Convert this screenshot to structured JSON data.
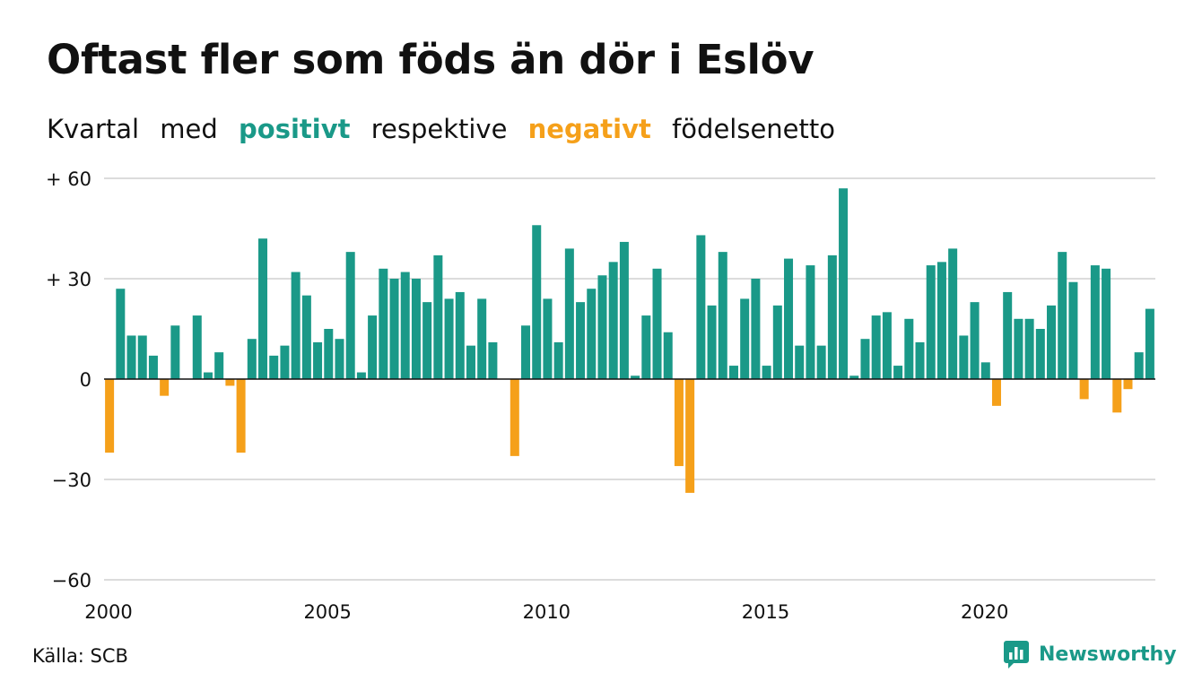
{
  "title": "Oftast fler som föds än dör i Eslöv",
  "subtitle": {
    "w1": "Kvartal",
    "w2": "med",
    "positive": "positivt",
    "w3": "respektive",
    "negative": "negativt",
    "w4": "födelsenetto"
  },
  "source": "Källa: SCB",
  "brand": "Newsworthy",
  "colors": {
    "positive": "#1a9988",
    "negative": "#f5a01a",
    "grid": "#dcdcdc",
    "axis": "#111111"
  },
  "chart_data": {
    "type": "bar",
    "title": "Oftast fler som föds än dör i Eslöv",
    "xlabel": "",
    "ylabel": "",
    "grid": true,
    "ylim": [
      -60,
      60
    ],
    "yticks": [
      {
        "value": 60,
        "label": "+ 60"
      },
      {
        "value": 30,
        "label": "+ 30"
      },
      {
        "value": 0,
        "label": "0"
      },
      {
        "value": -30,
        "label": "−30"
      },
      {
        "value": -60,
        "label": "−60"
      }
    ],
    "xticks": [
      {
        "year": 2000,
        "label": "2000"
      },
      {
        "year": 2005,
        "label": "2005"
      },
      {
        "year": 2010,
        "label": "2010"
      },
      {
        "year": 2015,
        "label": "2015"
      },
      {
        "year": 2020,
        "label": "2020"
      }
    ],
    "start_year": 2000,
    "frequency": "quarterly",
    "values": [
      -22,
      27,
      13,
      13,
      7,
      -5,
      16,
      0,
      19,
      2,
      8,
      -2,
      -22,
      12,
      42,
      7,
      10,
      32,
      25,
      11,
      15,
      12,
      38,
      2,
      19,
      33,
      30,
      32,
      30,
      23,
      37,
      24,
      26,
      10,
      24,
      11,
      0,
      -23,
      16,
      46,
      24,
      11,
      39,
      23,
      27,
      31,
      35,
      41,
      1,
      19,
      33,
      14,
      -26,
      -34,
      43,
      22,
      38,
      4,
      24,
      30,
      4,
      22,
      36,
      10,
      34,
      10,
      37,
      57,
      1,
      12,
      19,
      20,
      4,
      18,
      11,
      34,
      35,
      39,
      13,
      23,
      5,
      -8,
      26,
      18,
      18,
      15,
      22,
      38,
      29,
      -6,
      34,
      33,
      -10,
      -3,
      8,
      21
    ]
  }
}
